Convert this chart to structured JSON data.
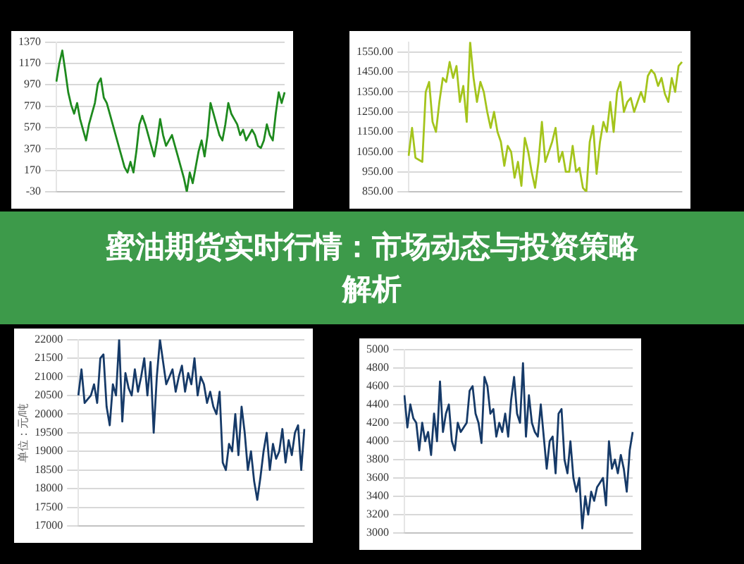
{
  "chart_data": [
    {
      "type": "line",
      "categories": [
        null,
        null,
        null,
        null,
        null,
        null,
        null,
        null,
        null,
        null,
        null,
        null,
        null,
        null,
        null,
        null,
        null,
        null,
        null,
        null,
        null,
        null,
        null,
        null,
        null,
        null,
        null,
        null,
        null,
        null,
        null,
        null,
        null,
        null,
        null,
        null,
        null,
        null,
        null,
        null,
        null,
        null,
        null,
        null,
        null,
        null,
        null,
        null,
        null,
        null,
        null,
        null,
        null,
        null,
        null,
        null,
        null,
        null,
        null,
        null,
        null,
        null,
        null,
        null,
        null,
        null,
        null,
        null,
        null,
        null,
        null,
        null,
        null,
        null,
        null,
        null,
        null,
        null
      ],
      "series": [
        {
          "color": "#1e8a1e",
          "values": [
            1000,
            1170,
            1290,
            1100,
            900,
            780,
            700,
            800,
            650,
            550,
            450,
            600,
            700,
            800,
            980,
            1030,
            850,
            800,
            700,
            600,
            500,
            400,
            300,
            200,
            150,
            250,
            150,
            350,
            600,
            680,
            600,
            500,
            400,
            300,
            450,
            650,
            500,
            400,
            450,
            500,
            400,
            300,
            200,
            100,
            -30,
            150,
            50,
            200,
            350,
            450,
            300,
            500,
            800,
            700,
            600,
            500,
            450,
            600,
            800,
            700,
            650,
            600,
            500,
            550,
            450,
            500,
            550,
            500,
            400,
            380,
            450,
            600,
            500,
            450,
            700,
            900,
            800,
            900
          ]
        }
      ],
      "ylim": [
        -30,
        1370
      ],
      "yticks": [
        -30,
        170,
        370,
        570,
        770,
        970,
        1170,
        1370
      ],
      "grid": "y",
      "tick_labels": "y",
      "legend": false,
      "marker": "none"
    },
    {
      "type": "line",
      "categories": [
        null,
        null,
        null,
        null,
        null,
        null,
        null,
        null,
        null,
        null,
        null,
        null,
        null,
        null,
        null,
        null,
        null,
        null,
        null,
        null,
        null,
        null,
        null,
        null,
        null,
        null,
        null,
        null,
        null,
        null,
        null,
        null,
        null,
        null,
        null,
        null,
        null,
        null,
        null,
        null,
        null,
        null,
        null,
        null,
        null,
        null,
        null,
        null,
        null,
        null,
        null,
        null,
        null,
        null,
        null,
        null,
        null,
        null,
        null,
        null,
        null,
        null,
        null,
        null,
        null,
        null,
        null,
        null,
        null,
        null,
        null,
        null,
        null,
        null,
        null,
        null,
        null,
        null,
        null,
        null,
        null
      ],
      "series": [
        {
          "color": "#a4c41c",
          "values": [
            1030,
            1170,
            1020,
            1010,
            1000,
            1350,
            1400,
            1200,
            1150,
            1300,
            1420,
            1400,
            1500,
            1420,
            1480,
            1300,
            1380,
            1200,
            1600,
            1420,
            1300,
            1400,
            1350,
            1250,
            1170,
            1250,
            1150,
            1100,
            980,
            1080,
            1050,
            920,
            1000,
            880,
            1120,
            1050,
            950,
            870,
            1000,
            1200,
            1000,
            1050,
            1100,
            1170,
            1000,
            1050,
            950,
            950,
            1080,
            950,
            970,
            870,
            850,
            1100,
            1180,
            940,
            1100,
            1200,
            1150,
            1300,
            1150,
            1350,
            1400,
            1250,
            1300,
            1320,
            1250,
            1300,
            1350,
            1300,
            1430,
            1460,
            1440,
            1380,
            1420,
            1340,
            1300,
            1420,
            1350,
            1480,
            1500
          ]
        }
      ],
      "ylim": [
        850,
        1600
      ],
      "yticks": [
        {
          "value": 850,
          "label": "850.00"
        },
        {
          "value": 950,
          "label": "950.00"
        },
        {
          "value": 1050,
          "label": "1050.00"
        },
        {
          "value": 1150,
          "label": "1150.00"
        },
        {
          "value": 1250,
          "label": "1250.00"
        },
        {
          "value": 1350,
          "label": "1350.00"
        },
        {
          "value": 1450,
          "label": "1450.00"
        },
        {
          "value": 1550,
          "label": "1550.00"
        }
      ],
      "grid": "y",
      "tick_labels": "y",
      "legend": false,
      "marker": "none"
    },
    {
      "type": "other",
      "title": "蜜油期货实时行情：市场动态与投资策略解析"
    },
    {
      "type": "line",
      "ylabel": "单位：元/吨",
      "categories": [
        null,
        null,
        null,
        null,
        null,
        null,
        null,
        null,
        null,
        null,
        null,
        null,
        null,
        null,
        null,
        null,
        null,
        null,
        null,
        null,
        null,
        null,
        null,
        null,
        null,
        null,
        null,
        null,
        null,
        null,
        null,
        null,
        null,
        null,
        null,
        null,
        null,
        null,
        null,
        null,
        null,
        null,
        null,
        null,
        null,
        null,
        null,
        null,
        null,
        null,
        null,
        null,
        null,
        null,
        null,
        null,
        null,
        null,
        null,
        null,
        null,
        null,
        null,
        null,
        null,
        null,
        null,
        null,
        null,
        null,
        null,
        null,
        null
      ],
      "series": [
        {
          "color": "#163a68",
          "values": [
            20500,
            21200,
            20300,
            20400,
            20500,
            20800,
            20300,
            21500,
            21600,
            20200,
            19700,
            20800,
            20500,
            22000,
            19800,
            21100,
            20700,
            20500,
            21200,
            20600,
            21000,
            21500,
            20500,
            21400,
            19500,
            21000,
            22000,
            21400,
            20800,
            21000,
            21200,
            20600,
            21000,
            21300,
            20600,
            21100,
            20800,
            21500,
            20500,
            21000,
            20800,
            20300,
            20600,
            20200,
            20000,
            20600,
            18700,
            18500,
            19200,
            19000,
            20000,
            18900,
            20200,
            19500,
            18500,
            19000,
            18200,
            17700,
            18300,
            19000,
            19500,
            18500,
            19200,
            18800,
            19000,
            19600,
            18700,
            19300,
            18900,
            19500,
            19700,
            18500,
            19600
          ]
        }
      ],
      "ylim": [
        17000,
        22000
      ],
      "yticks": [
        17000,
        17500,
        18000,
        18500,
        19000,
        19500,
        20000,
        20500,
        21000,
        21500,
        22000
      ],
      "grid": "y",
      "tick_labels": "y",
      "legend": false,
      "marker": "none"
    },
    {
      "type": "line",
      "categories": [
        null,
        null,
        null,
        null,
        null,
        null,
        null,
        null,
        null,
        null,
        null,
        null,
        null,
        null,
        null,
        null,
        null,
        null,
        null,
        null,
        null,
        null,
        null,
        null,
        null,
        null,
        null,
        null,
        null,
        null,
        null,
        null,
        null,
        null,
        null,
        null,
        null,
        null,
        null,
        null,
        null,
        null,
        null,
        null,
        null,
        null,
        null,
        null,
        null,
        null,
        null,
        null,
        null,
        null,
        null,
        null,
        null,
        null,
        null,
        null,
        null,
        null,
        null,
        null,
        null,
        null,
        null,
        null,
        null,
        null,
        null,
        null,
        null,
        null,
        null,
        null,
        null,
        null
      ],
      "series": [
        {
          "color": "#163a68",
          "values": [
            4500,
            4150,
            4400,
            4250,
            4200,
            3900,
            4200,
            4000,
            4100,
            3850,
            4300,
            4000,
            4650,
            4100,
            4300,
            4400,
            4000,
            3900,
            4200,
            4100,
            4150,
            4200,
            4550,
            4600,
            4300,
            4200,
            3980,
            4700,
            4600,
            4300,
            4350,
            4050,
            4200,
            4100,
            4300,
            4050,
            4450,
            4700,
            4300,
            4200,
            4850,
            4050,
            4500,
            4200,
            4100,
            4050,
            4400,
            4050,
            3700,
            4000,
            4050,
            3650,
            4300,
            4350,
            3800,
            3650,
            4000,
            3600,
            3450,
            3600,
            3050,
            3400,
            3200,
            3450,
            3350,
            3500,
            3550,
            3600,
            3300,
            4000,
            3700,
            3800,
            3650,
            3850,
            3700,
            3450,
            3900,
            4100
          ]
        }
      ],
      "ylim": [
        3000,
        5000
      ],
      "yticks": [
        3000,
        3200,
        3400,
        3600,
        3800,
        4000,
        4200,
        4400,
        4600,
        4800,
        5000
      ],
      "grid": "y",
      "tick_labels": "y",
      "legend": false,
      "marker": "none"
    }
  ]
}
